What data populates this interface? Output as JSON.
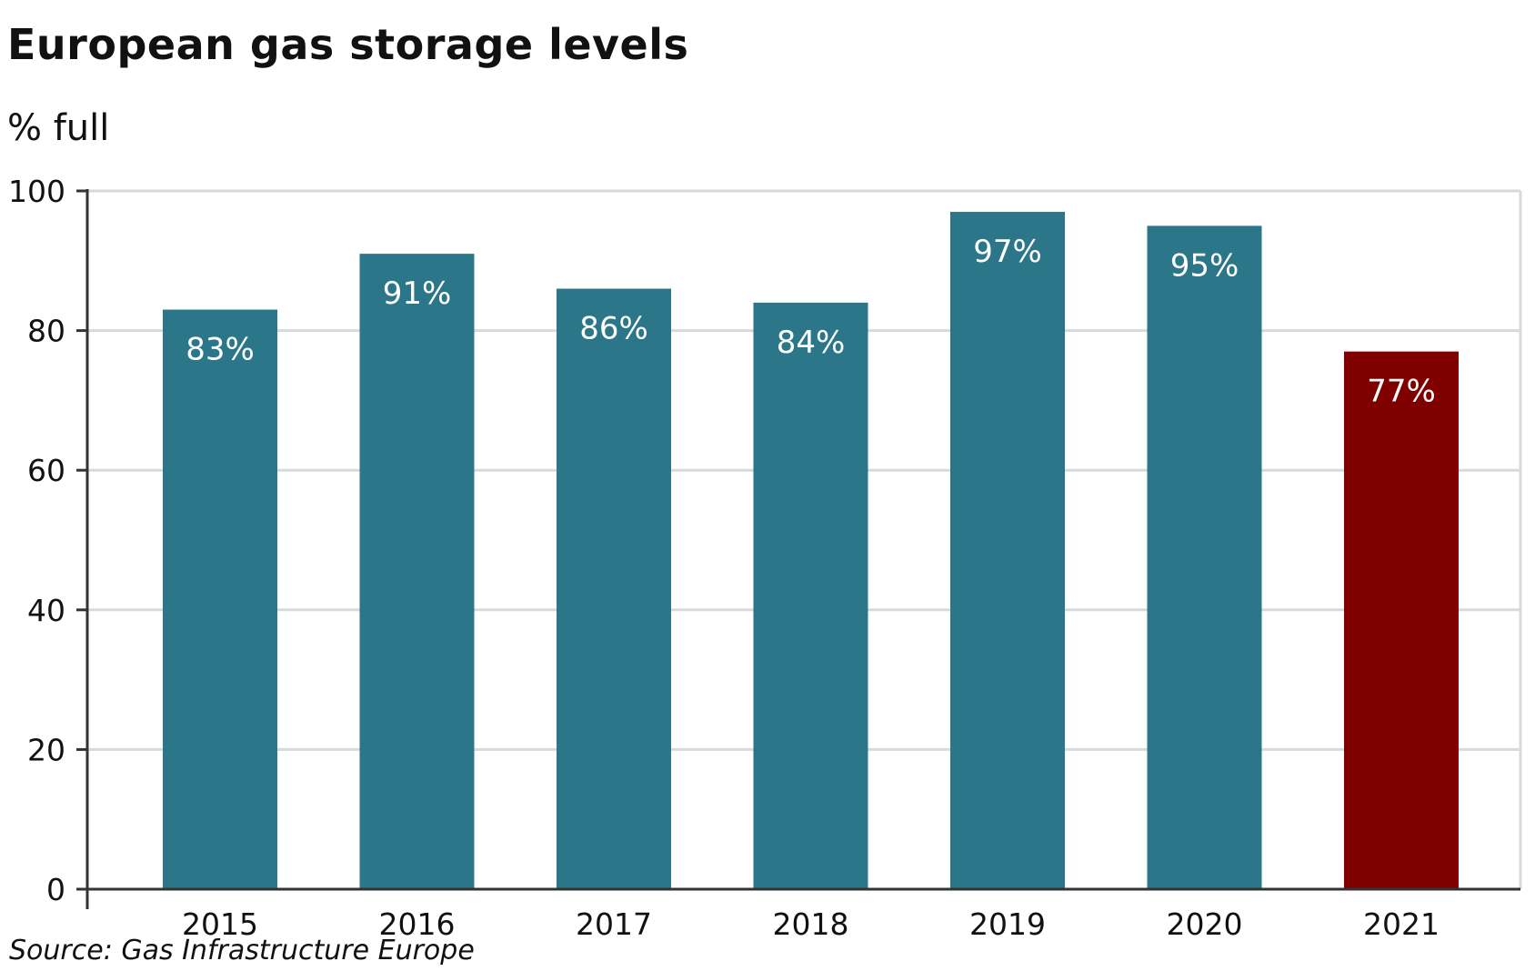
{
  "chart_data": {
    "type": "bar",
    "title": "European gas storage levels",
    "ylabel": "% full",
    "source": "Source: Gas Infrastructure Europe",
    "categories": [
      "2015",
      "2016",
      "2017",
      "2018",
      "2019",
      "2020",
      "2021"
    ],
    "values": [
      83,
      91,
      86,
      84,
      97,
      95,
      77
    ],
    "data_labels": [
      "83%",
      "91%",
      "86%",
      "84%",
      "97%",
      "95%",
      "77%"
    ],
    "bar_colors": [
      "#2c7689",
      "#2c7689",
      "#2c7689",
      "#2c7689",
      "#2c7689",
      "#2c7689",
      "#800000"
    ],
    "ylim": [
      0,
      100
    ],
    "yticks": [
      0,
      20,
      40,
      60,
      80,
      100
    ],
    "grid": true,
    "grid_color": "#d5dadd",
    "axis_color": "#333333"
  }
}
